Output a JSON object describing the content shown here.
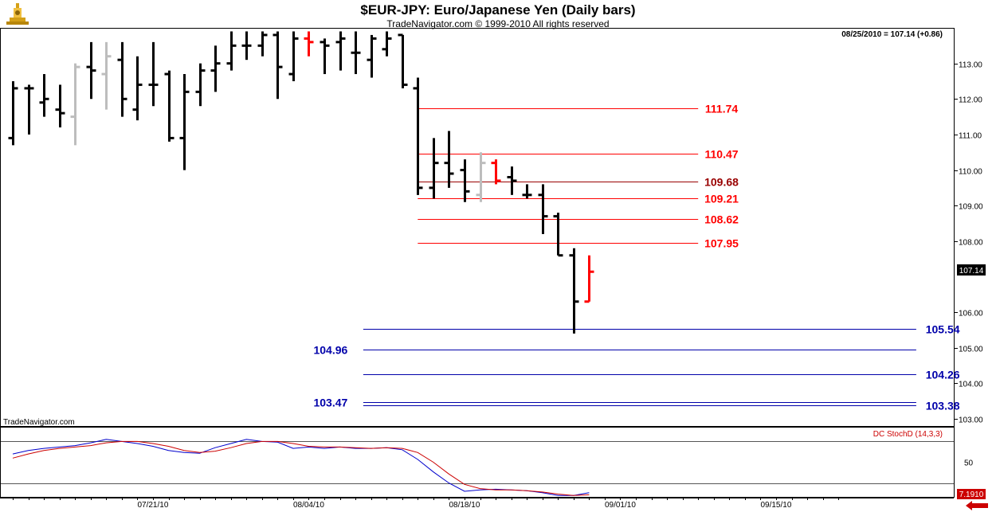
{
  "chart_data": {
    "type": "ohlc",
    "title": "$EUR-JPY:  Euro/Japanese Yen  (Daily bars)",
    "subtitle": "TradeNavigator.com © 1999-2010 All rights reserved",
    "readout": "08/25/2010 = 107.14 (+0.86)",
    "watermark": "TradeNavigator.com",
    "last_price_label": "107.14",
    "ylim": [
      102.8,
      114.0
    ],
    "yticks": [
      {
        "v": 103,
        "label": "103.00"
      },
      {
        "v": 104,
        "label": "104.00"
      },
      {
        "v": 105,
        "label": "105.00"
      },
      {
        "v": 106,
        "label": "106.00"
      },
      {
        "v": 108,
        "label": "108.00"
      },
      {
        "v": 109,
        "label": "109.00"
      },
      {
        "v": 110,
        "label": "110.00"
      },
      {
        "v": 111,
        "label": "111.00"
      },
      {
        "v": 112,
        "label": "112.00"
      },
      {
        "v": 113,
        "label": "113.00"
      }
    ],
    "xticks": [
      {
        "i": 9,
        "label": "07/21/10"
      },
      {
        "i": 19,
        "label": "08/04/10"
      },
      {
        "i": 29,
        "label": "08/18/10"
      },
      {
        "i": 39,
        "label": "09/01/10"
      },
      {
        "i": 49,
        "label": "09/15/10"
      }
    ],
    "bars": [
      {
        "o": 110.9,
        "h": 112.5,
        "l": 110.7,
        "c": 112.3,
        "color": "black"
      },
      {
        "o": 112.3,
        "h": 112.4,
        "l": 111.0,
        "c": 112.3,
        "color": "black"
      },
      {
        "o": 111.9,
        "h": 112.7,
        "l": 111.5,
        "c": 112.0,
        "color": "black"
      },
      {
        "o": 111.7,
        "h": 112.4,
        "l": 111.2,
        "c": 111.6,
        "color": "black"
      },
      {
        "o": 111.5,
        "h": 113.0,
        "l": 110.7,
        "c": 112.9,
        "color": "gray"
      },
      {
        "o": 112.9,
        "h": 113.6,
        "l": 112.0,
        "c": 112.8,
        "color": "black"
      },
      {
        "o": 112.7,
        "h": 113.6,
        "l": 111.7,
        "c": 113.2,
        "color": "gray"
      },
      {
        "o": 113.1,
        "h": 113.6,
        "l": 111.5,
        "c": 112.0,
        "color": "black"
      },
      {
        "o": 111.7,
        "h": 113.2,
        "l": 111.4,
        "c": 112.4,
        "color": "black"
      },
      {
        "o": 112.4,
        "h": 113.6,
        "l": 111.8,
        "c": 112.4,
        "color": "black"
      },
      {
        "o": 112.7,
        "h": 112.8,
        "l": 110.8,
        "c": 110.9,
        "color": "black"
      },
      {
        "o": 110.9,
        "h": 112.7,
        "l": 110.0,
        "c": 112.2,
        "color": "black"
      },
      {
        "o": 112.2,
        "h": 113.0,
        "l": 111.8,
        "c": 112.8,
        "color": "black"
      },
      {
        "o": 112.8,
        "h": 113.5,
        "l": 112.2,
        "c": 113.0,
        "color": "black"
      },
      {
        "o": 113.0,
        "h": 113.9,
        "l": 112.8,
        "c": 113.5,
        "color": "black"
      },
      {
        "o": 113.5,
        "h": 113.9,
        "l": 113.1,
        "c": 113.5,
        "color": "black"
      },
      {
        "o": 113.5,
        "h": 113.9,
        "l": 113.2,
        "c": 113.8,
        "color": "black"
      },
      {
        "o": 113.8,
        "h": 113.9,
        "l": 112.0,
        "c": 112.9,
        "color": "black"
      },
      {
        "o": 112.7,
        "h": 113.9,
        "l": 112.5,
        "c": 113.7,
        "color": "black"
      },
      {
        "o": 113.7,
        "h": 113.9,
        "l": 113.2,
        "c": 113.6,
        "color": "red"
      },
      {
        "o": 113.6,
        "h": 113.7,
        "l": 112.7,
        "c": 113.5,
        "color": "black"
      },
      {
        "o": 113.6,
        "h": 113.9,
        "l": 112.8,
        "c": 113.7,
        "color": "black"
      },
      {
        "o": 113.3,
        "h": 113.9,
        "l": 112.7,
        "c": 113.3,
        "color": "black"
      },
      {
        "o": 113.1,
        "h": 113.8,
        "l": 112.6,
        "c": 113.7,
        "color": "black"
      },
      {
        "o": 113.4,
        "h": 113.9,
        "l": 113.2,
        "c": 113.7,
        "color": "black"
      },
      {
        "o": 113.8,
        "h": 113.8,
        "l": 112.3,
        "c": 112.4,
        "color": "black"
      },
      {
        "o": 112.3,
        "h": 112.6,
        "l": 109.3,
        "c": 109.5,
        "color": "black"
      },
      {
        "o": 109.5,
        "h": 110.9,
        "l": 109.2,
        "c": 110.2,
        "color": "black"
      },
      {
        "o": 110.2,
        "h": 111.1,
        "l": 109.5,
        "c": 109.9,
        "color": "black"
      },
      {
        "o": 110.0,
        "h": 110.3,
        "l": 109.1,
        "c": 109.4,
        "color": "black"
      },
      {
        "o": 109.3,
        "h": 110.5,
        "l": 109.1,
        "c": 110.2,
        "color": "gray"
      },
      {
        "o": 110.2,
        "h": 110.3,
        "l": 109.6,
        "c": 109.7,
        "color": "red"
      },
      {
        "o": 109.8,
        "h": 110.1,
        "l": 109.3,
        "c": 109.7,
        "color": "black"
      },
      {
        "o": 109.3,
        "h": 109.6,
        "l": 109.2,
        "c": 109.3,
        "color": "black"
      },
      {
        "o": 109.3,
        "h": 109.6,
        "l": 108.2,
        "c": 108.7,
        "color": "black"
      },
      {
        "o": 108.7,
        "h": 108.8,
        "l": 107.6,
        "c": 107.6,
        "color": "black"
      },
      {
        "o": 107.6,
        "h": 107.8,
        "l": 105.4,
        "c": 106.3,
        "color": "black"
      },
      {
        "o": 106.3,
        "h": 107.6,
        "l": 106.3,
        "c": 107.14,
        "color": "red"
      }
    ],
    "levels": [
      {
        "value": 111.74,
        "label": "111.74",
        "color": "#ff0000",
        "from_bar": 26,
        "to_bar": 44,
        "label_bar": 45.5,
        "label_side": "right"
      },
      {
        "value": 110.47,
        "label": "110.47",
        "color": "#ff0000",
        "from_bar": 26,
        "to_bar": 44,
        "label_bar": 45.5,
        "label_side": "right"
      },
      {
        "value": 109.68,
        "label": "109.68",
        "color": "#990000",
        "from_bar": 26,
        "to_bar": 44,
        "label_bar": 45.5,
        "label_side": "right"
      },
      {
        "value": 109.21,
        "label": "109.21",
        "color": "#ff0000",
        "from_bar": 26,
        "to_bar": 44,
        "label_bar": 45.5,
        "label_side": "right"
      },
      {
        "value": 108.62,
        "label": "108.62",
        "color": "#ff0000",
        "from_bar": 26,
        "to_bar": 44,
        "label_bar": 45.5,
        "label_side": "right"
      },
      {
        "value": 107.95,
        "label": "107.95",
        "color": "#ff0000",
        "from_bar": 26,
        "to_bar": 44,
        "label_bar": 45.5,
        "label_side": "right"
      },
      {
        "value": 105.54,
        "label": "105.54",
        "color": "#0000aa",
        "from_bar": 22.5,
        "to_bar": 58,
        "label_bar": 59.7,
        "label_side": "right"
      },
      {
        "value": 104.96,
        "label": "104.96",
        "color": "#0000aa",
        "from_bar": 22.5,
        "to_bar": 58,
        "label_bar": 21.5,
        "label_side": "left"
      },
      {
        "value": 104.26,
        "label": "104.26",
        "color": "#0000aa",
        "from_bar": 22.5,
        "to_bar": 58,
        "label_bar": 59.7,
        "label_side": "right"
      },
      {
        "value": 103.47,
        "label": "103.47",
        "color": "#0000aa",
        "from_bar": 22.5,
        "to_bar": 58,
        "label_bar": 21.5,
        "label_side": "left"
      },
      {
        "value": 103.38,
        "label": "103.38",
        "color": "#0000aa",
        "from_bar": 22.5,
        "to_bar": 58,
        "label_bar": 59.7,
        "label_side": "right"
      }
    ],
    "indicator": {
      "name": "DC StochD (14,3,3)",
      "ylim": [
        0,
        100
      ],
      "upper_band": 80,
      "lower_band": 20,
      "tick_label": "50",
      "tick_value": 50,
      "last_value_label": "7.1910",
      "k": [
        62,
        67,
        70,
        72,
        74,
        78,
        83,
        80,
        77,
        73,
        67,
        64,
        63,
        71,
        77,
        83,
        80,
        79,
        70,
        72,
        70,
        72,
        70,
        70,
        71,
        68,
        54,
        36,
        20,
        8,
        10,
        11,
        10,
        9,
        6,
        2,
        2,
        6
      ],
      "d": [
        56,
        62,
        67,
        70,
        72,
        74,
        78,
        80,
        80,
        77,
        73,
        67,
        64,
        66,
        71,
        77,
        80,
        80,
        77,
        73,
        72,
        72,
        71,
        70,
        71,
        70,
        64,
        50,
        33,
        18,
        12,
        10,
        10,
        9,
        7,
        4,
        2,
        3
      ]
    }
  }
}
